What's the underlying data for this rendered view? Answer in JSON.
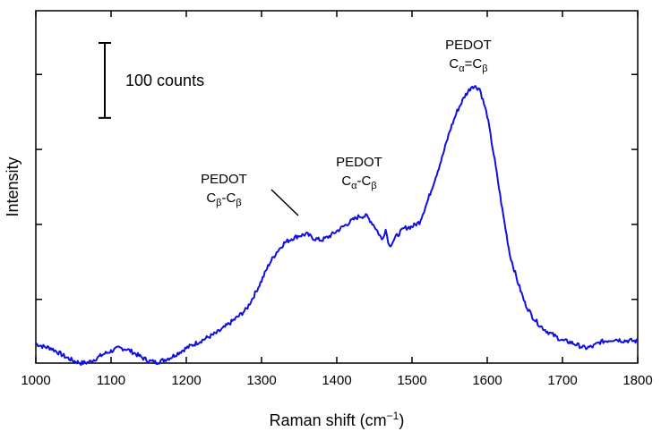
{
  "chart_data": {
    "type": "line",
    "xlabel": "Raman shift (cm",
    "xlabel_sup": "−1",
    "xlabel_end": ")",
    "ylabel": "Intensity",
    "xlim": [
      1000,
      1800
    ],
    "ylim": [
      0,
      470
    ],
    "xticks": [
      "1000",
      "1100",
      "1200",
      "1300",
      "1400",
      "1500",
      "1600",
      "1700",
      "1800"
    ],
    "ytick_values": [
      85,
      185,
      285,
      385
    ],
    "grid": false,
    "line_color": "#1010e0",
    "scale_bar": {
      "label": "100 counts",
      "value": 100
    },
    "annotations": [
      {
        "line1": "PEDOT",
        "base1": "C",
        "sub1": "β",
        "sep": "-",
        "base2": "C",
        "sub2": "β"
      },
      {
        "line1": "PEDOT",
        "base1": "C",
        "sub1": "α",
        "sep": "-",
        "base2": "C",
        "sub2": "β"
      },
      {
        "line1": "PEDOT",
        "base1": "C",
        "sub1": "α",
        "sep": "=",
        "base2": "C",
        "sub2": "β"
      }
    ],
    "series": [
      {
        "points": [
          [
            1000,
            26
          ],
          [
            1010,
            22
          ],
          [
            1020,
            20
          ],
          [
            1030,
            14
          ],
          [
            1040,
            8
          ],
          [
            1050,
            3
          ],
          [
            1060,
            0
          ],
          [
            1070,
            1
          ],
          [
            1080,
            6
          ],
          [
            1090,
            12
          ],
          [
            1100,
            16
          ],
          [
            1110,
            20
          ],
          [
            1120,
            19
          ],
          [
            1130,
            14
          ],
          [
            1140,
            8
          ],
          [
            1150,
            3
          ],
          [
            1160,
            1
          ],
          [
            1170,
            4
          ],
          [
            1180,
            8
          ],
          [
            1190,
            14
          ],
          [
            1200,
            20
          ],
          [
            1210,
            25
          ],
          [
            1220,
            30
          ],
          [
            1230,
            35
          ],
          [
            1240,
            40
          ],
          [
            1250,
            47
          ],
          [
            1260,
            55
          ],
          [
            1270,
            63
          ],
          [
            1280,
            72
          ],
          [
            1290,
            90
          ],
          [
            1300,
            110
          ],
          [
            1310,
            132
          ],
          [
            1320,
            148
          ],
          [
            1330,
            160
          ],
          [
            1340,
            166
          ],
          [
            1350,
            170
          ],
          [
            1360,
            172
          ],
          [
            1370,
            166
          ],
          [
            1380,
            164
          ],
          [
            1390,
            169
          ],
          [
            1400,
            176
          ],
          [
            1410,
            183
          ],
          [
            1420,
            190
          ],
          [
            1430,
            196
          ],
          [
            1440,
            196
          ],
          [
            1450,
            183
          ],
          [
            1460,
            165
          ],
          [
            1465,
            178
          ],
          [
            1470,
            156
          ],
          [
            1480,
            170
          ],
          [
            1490,
            180
          ],
          [
            1500,
            182
          ],
          [
            1510,
            188
          ],
          [
            1520,
            214
          ],
          [
            1530,
            244
          ],
          [
            1540,
            274
          ],
          [
            1550,
            309
          ],
          [
            1560,
            336
          ],
          [
            1570,
            356
          ],
          [
            1580,
            370
          ],
          [
            1590,
            366
          ],
          [
            1600,
            330
          ],
          [
            1610,
            270
          ],
          [
            1620,
            205
          ],
          [
            1630,
            145
          ],
          [
            1640,
            110
          ],
          [
            1650,
            80
          ],
          [
            1660,
            62
          ],
          [
            1670,
            50
          ],
          [
            1680,
            42
          ],
          [
            1690,
            36
          ],
          [
            1700,
            30
          ],
          [
            1710,
            28
          ],
          [
            1720,
            24
          ],
          [
            1730,
            20
          ],
          [
            1740,
            22
          ],
          [
            1750,
            28
          ],
          [
            1760,
            30
          ],
          [
            1770,
            32
          ],
          [
            1780,
            30
          ],
          [
            1790,
            30
          ],
          [
            1800,
            29
          ]
        ]
      }
    ]
  }
}
